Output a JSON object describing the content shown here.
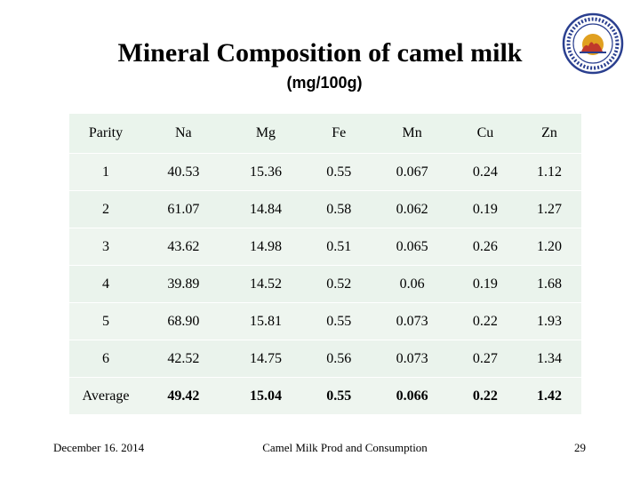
{
  "slide": {
    "title": "Mineral Composition of camel milk",
    "subtitle": "(mg/100g)"
  },
  "logo": {
    "icon": "camel-association-seal-icon",
    "colors": {
      "ring": "#2a3f8f",
      "sun": "#e0a020",
      "camel": "#c0392b"
    }
  },
  "table": {
    "headers": [
      "Parity",
      "Na",
      "Mg",
      "Fe",
      "Mn",
      "Cu",
      "Zn"
    ],
    "rows": [
      [
        "1",
        "40.53",
        "15.36",
        "0.55",
        "0.067",
        "0.24",
        "1.12"
      ],
      [
        "2",
        "61.07",
        "14.84",
        "0.58",
        "0.062",
        "0.19",
        "1.27"
      ],
      [
        "3",
        "43.62",
        "14.98",
        "0.51",
        "0.065",
        "0.26",
        "1.20"
      ],
      [
        "4",
        "39.89",
        "14.52",
        "0.52",
        "0.06",
        "0.19",
        "1.68"
      ],
      [
        "5",
        "68.90",
        "15.81",
        "0.55",
        "0.073",
        "0.22",
        "1.93"
      ],
      [
        "6",
        "42.52",
        "14.75",
        "0.56",
        "0.073",
        "0.27",
        "1.34"
      ]
    ],
    "average": [
      "Average",
      "49.42",
      "15.04",
      "0.55",
      "0.066",
      "0.22",
      "1.42"
    ]
  },
  "footer": {
    "date": "December 16. 2014",
    "center": "Camel Milk Prod and Consumption",
    "page_number": "29"
  }
}
